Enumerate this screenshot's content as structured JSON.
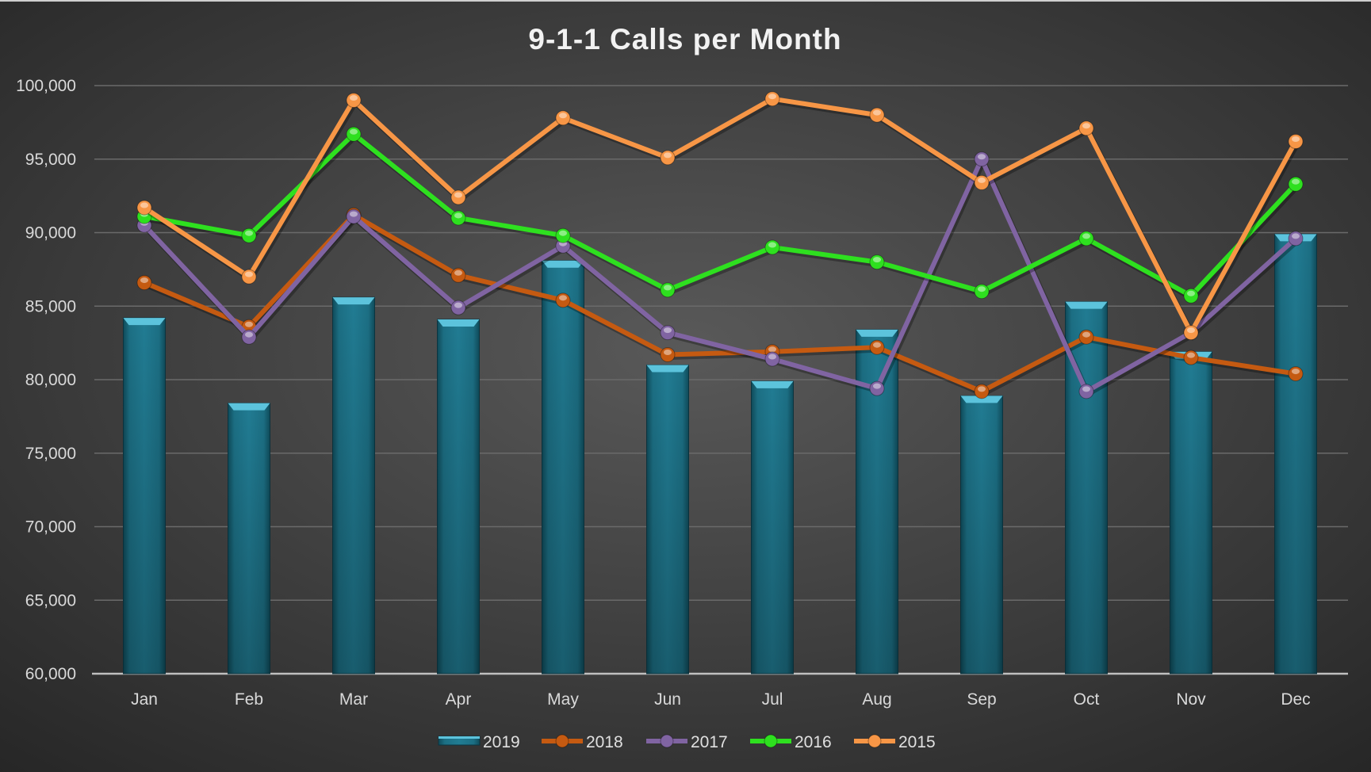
{
  "chart_data": {
    "type": "bar+line",
    "title": "9-1-1 Calls per Month",
    "xlabel": "",
    "ylabel": "",
    "ylim": [
      60000,
      100000
    ],
    "yticks": [
      "60,000",
      "65,000",
      "70,000",
      "75,000",
      "80,000",
      "85,000",
      "90,000",
      "95,000",
      "100,000"
    ],
    "ytick_values": [
      60000,
      65000,
      70000,
      75000,
      80000,
      85000,
      90000,
      95000,
      100000
    ],
    "grid": true,
    "legend_position": "bottom",
    "categories": [
      "Jan",
      "Feb",
      "Mar",
      "Apr",
      "May",
      "Jun",
      "Jul",
      "Aug",
      "Sep",
      "Oct",
      "Nov",
      "Dec"
    ],
    "series": [
      {
        "name": "2019",
        "kind": "bar",
        "color": "#1f7a90",
        "values": [
          84200,
          78400,
          85600,
          84100,
          88100,
          81000,
          79900,
          83400,
          78900,
          85300,
          81900,
          89900
        ]
      },
      {
        "name": "2018",
        "kind": "line",
        "color": "#c55a11",
        "values": [
          86600,
          83600,
          91200,
          87100,
          85400,
          81700,
          81900,
          82200,
          79200,
          82900,
          81500,
          80400
        ]
      },
      {
        "name": "2017",
        "kind": "line",
        "color": "#8064a2",
        "values": [
          90500,
          82900,
          91100,
          84900,
          89100,
          83200,
          81400,
          79400,
          95000,
          79200,
          83200,
          89600
        ]
      },
      {
        "name": "2016",
        "kind": "line",
        "color": "#2ee01f",
        "values": [
          91100,
          89800,
          96700,
          91000,
          89800,
          86100,
          89000,
          88000,
          86000,
          89600,
          85700,
          93300
        ]
      },
      {
        "name": "2015",
        "kind": "line",
        "color": "#f79646",
        "values": [
          91700,
          87000,
          99000,
          92400,
          97800,
          95100,
          99100,
          98000,
          93400,
          97100,
          83200,
          96200
        ]
      }
    ]
  }
}
